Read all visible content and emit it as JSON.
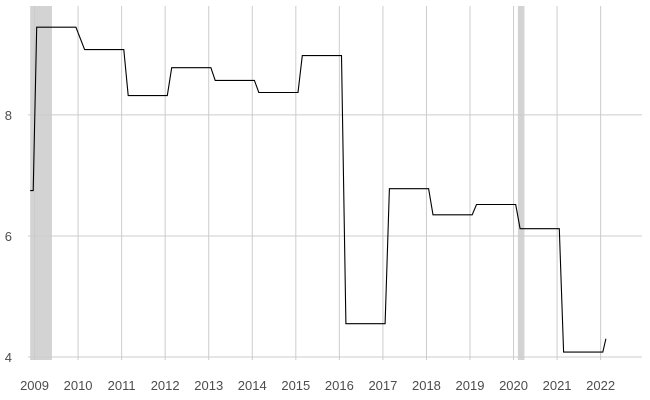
{
  "chart_data": {
    "type": "line",
    "title": "",
    "xlabel": "",
    "ylabel": "",
    "xlim": [
      2008.85,
      2022.95
    ],
    "ylim": [
      3.95,
      9.8
    ],
    "grid": true,
    "legend": "none",
    "x_ticks": [
      2009,
      2010,
      2011,
      2012,
      2013,
      2014,
      2015,
      2016,
      2017,
      2018,
      2019,
      2020,
      2021,
      2022
    ],
    "x_tick_labels": [
      "2009",
      "2010",
      "2011",
      "2012",
      "2013",
      "2014",
      "2015",
      "2016",
      "2017",
      "2018",
      "2019",
      "2020",
      "2021",
      "2022"
    ],
    "y_ticks": [
      4,
      6,
      8
    ],
    "y_tick_labels": [
      "4",
      "6",
      "8"
    ],
    "shaded_periods": [
      {
        "start": 2008.9,
        "end": 2009.4
      },
      {
        "start": 2020.1,
        "end": 2020.25
      }
    ],
    "series": [
      {
        "color": "#000000",
        "x": [
          2008.9,
          2008.97,
          2009.05,
          2009.95,
          2010.15,
          2011.05,
          2011.15,
          2012.05,
          2012.15,
          2013.05,
          2013.15,
          2014.05,
          2014.15,
          2015.05,
          2015.15,
          2016.05,
          2016.15,
          2017.05,
          2017.15,
          2018.05,
          2018.15,
          2019.05,
          2019.15,
          2020.05,
          2020.15,
          2021.05,
          2021.15,
          2022.05,
          2022.12
        ],
        "y": [
          6.75,
          6.75,
          9.45,
          9.45,
          9.08,
          9.08,
          8.32,
          8.32,
          8.78,
          8.78,
          8.57,
          8.57,
          8.37,
          8.37,
          8.98,
          8.98,
          4.55,
          4.55,
          6.78,
          6.78,
          6.35,
          6.35,
          6.52,
          6.52,
          6.12,
          6.12,
          4.08,
          4.08,
          4.3
        ]
      }
    ]
  },
  "colors": {
    "background": "#ffffff",
    "grid": "#cccccc",
    "shade": "#d3d3d3",
    "line": "#000000",
    "tick_text": "#4d4d4d"
  }
}
